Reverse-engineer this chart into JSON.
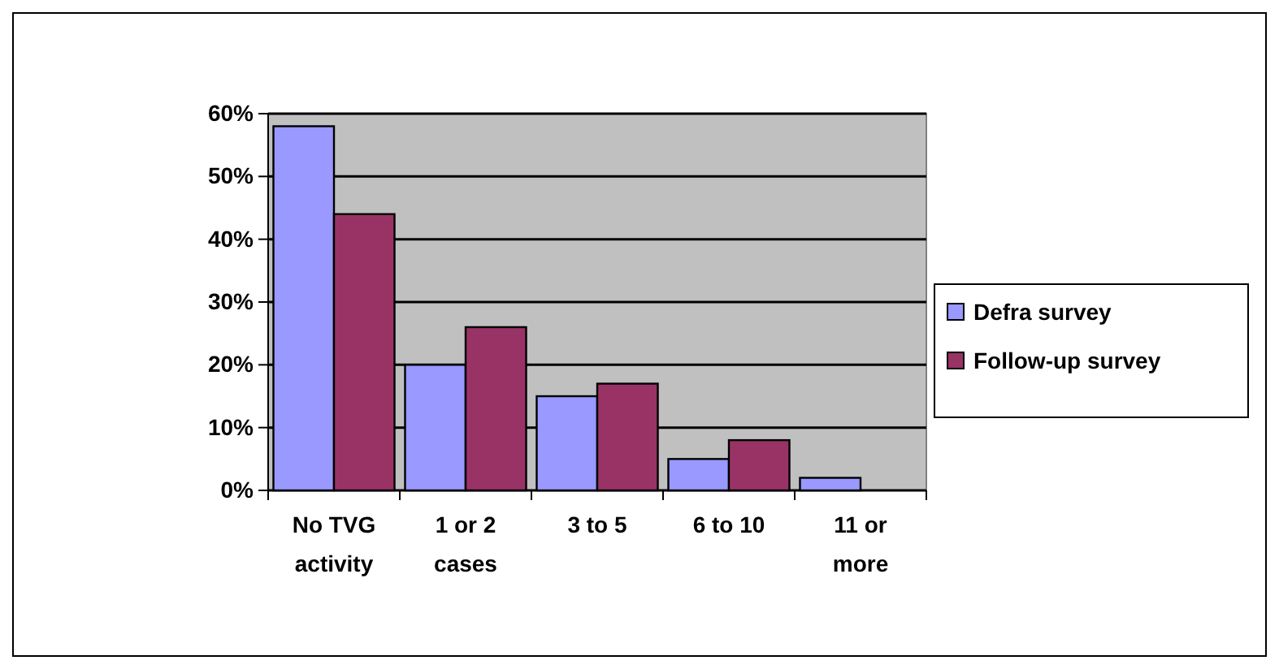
{
  "chart_data": {
    "type": "bar",
    "categories": [
      "No TVG activity",
      "1 or 2 cases",
      "3 to 5",
      "6 to 10",
      "11 or more"
    ],
    "series": [
      {
        "name": "Defra survey",
        "color": "#9999ff",
        "values": [
          58,
          20,
          15,
          5,
          2
        ]
      },
      {
        "name": "Follow-up survey",
        "color": "#993366",
        "values": [
          44,
          26,
          17,
          8,
          0
        ]
      }
    ],
    "ylim": [
      0,
      60
    ],
    "yticks": [
      {
        "value": 0,
        "label": "0%"
      },
      {
        "value": 10,
        "label": "10%"
      },
      {
        "value": 20,
        "label": "20%"
      },
      {
        "value": 30,
        "label": "30%"
      },
      {
        "value": 40,
        "label": "40%"
      },
      {
        "value": 50,
        "label": "50%"
      },
      {
        "value": 60,
        "label": "60%"
      }
    ],
    "grid": "y",
    "legend": "right"
  }
}
